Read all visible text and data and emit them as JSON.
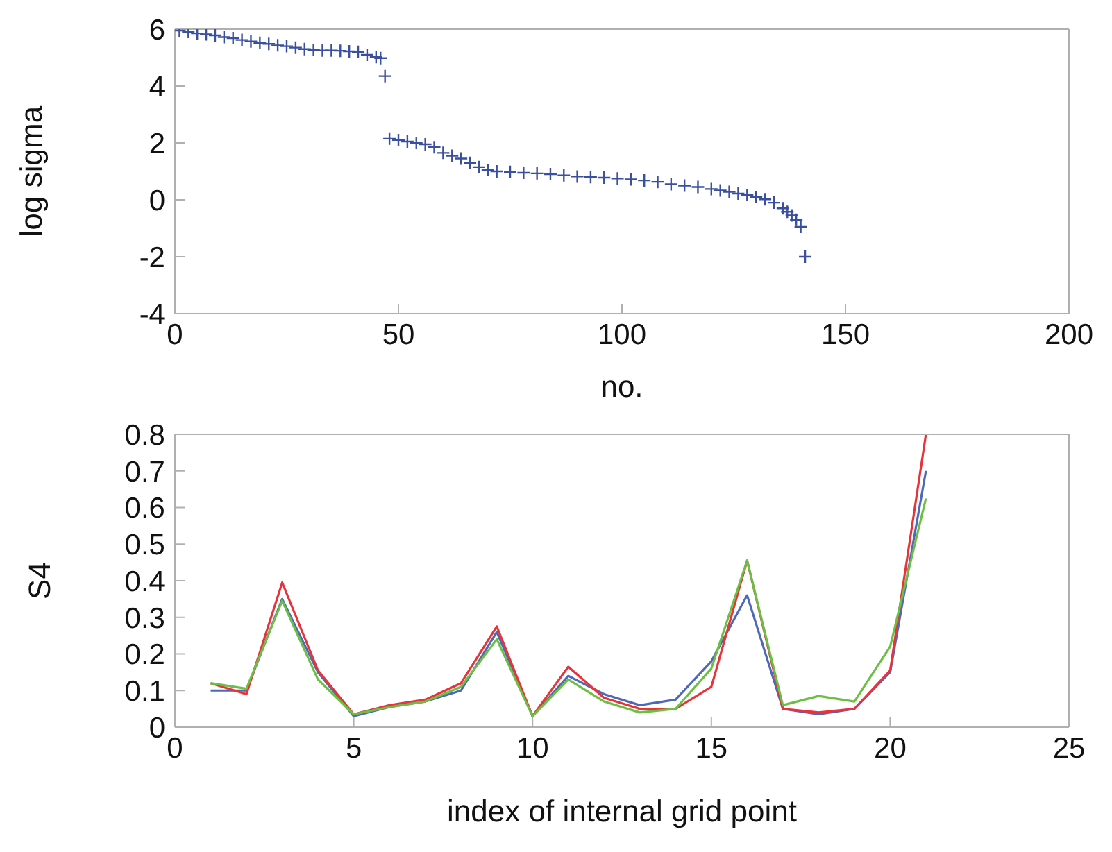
{
  "chart_data": [
    {
      "type": "scatter",
      "xlabel": "no.",
      "ylabel": "log sigma",
      "xlim": [
        0,
        200
      ],
      "xticks": [
        0,
        50,
        100,
        150,
        200
      ],
      "ylim": [
        -4,
        6
      ],
      "yticks": [
        -4,
        -2,
        0,
        2,
        4,
        6
      ],
      "marker": "cross",
      "grid": false,
      "series": [
        {
          "color": "#3b4fa0",
          "x": [
            1,
            3,
            5,
            7,
            9,
            11,
            13,
            15,
            17,
            19,
            21,
            23,
            25,
            27,
            29,
            31,
            33,
            35,
            37,
            39,
            41,
            43,
            45,
            46,
            47,
            48,
            50,
            52,
            54,
            56,
            58,
            60,
            62,
            64,
            66,
            68,
            70,
            72,
            75,
            78,
            81,
            84,
            87,
            90,
            93,
            96,
            99,
            102,
            105,
            108,
            111,
            114,
            117,
            120,
            122,
            124,
            126,
            128,
            130,
            132,
            134,
            136,
            137,
            138,
            139,
            140,
            141
          ],
          "values": [
            5.95,
            5.9,
            5.85,
            5.82,
            5.78,
            5.72,
            5.68,
            5.62,
            5.57,
            5.52,
            5.48,
            5.43,
            5.4,
            5.35,
            5.3,
            5.27,
            5.25,
            5.25,
            5.24,
            5.22,
            5.2,
            5.1,
            5.02,
            4.98,
            4.35,
            2.15,
            2.1,
            2.05,
            2.0,
            1.95,
            1.85,
            1.65,
            1.55,
            1.45,
            1.3,
            1.15,
            1.05,
            1.0,
            0.98,
            0.95,
            0.93,
            0.9,
            0.86,
            0.82,
            0.8,
            0.78,
            0.75,
            0.72,
            0.68,
            0.63,
            0.55,
            0.5,
            0.45,
            0.38,
            0.33,
            0.28,
            0.22,
            0.17,
            0.1,
            0.02,
            -0.1,
            -0.3,
            -0.42,
            -0.55,
            -0.7,
            -0.95,
            -2.0
          ]
        }
      ]
    },
    {
      "type": "line",
      "xlabel": "index of internal grid point",
      "ylabel": "S4",
      "x": [
        1,
        2,
        3,
        4,
        5,
        6,
        7,
        8,
        9,
        10,
        11,
        12,
        13,
        14,
        15,
        16,
        17,
        18,
        19,
        20,
        21
      ],
      "xlim": [
        0,
        25
      ],
      "xticks": [
        0,
        5,
        10,
        15,
        20,
        25
      ],
      "ylim": [
        0,
        0.8
      ],
      "yticks": [
        0,
        0.1,
        0.2,
        0.3,
        0.4,
        0.5,
        0.6,
        0.7,
        0.8
      ],
      "marker": "none",
      "line_style": "solid",
      "grid": false,
      "series": [
        {
          "color": "#5068b8",
          "values": [
            0.1,
            0.1,
            0.35,
            0.15,
            0.03,
            0.055,
            0.07,
            0.1,
            0.26,
            0.03,
            0.14,
            0.09,
            0.06,
            0.075,
            0.18,
            0.36,
            0.05,
            0.035,
            0.05,
            0.15,
            0.7
          ]
        },
        {
          "color": "#e8333a",
          "values": [
            0.12,
            0.09,
            0.395,
            0.155,
            0.035,
            0.06,
            0.075,
            0.12,
            0.275,
            0.03,
            0.165,
            0.08,
            0.05,
            0.05,
            0.11,
            0.455,
            0.05,
            0.04,
            0.05,
            0.155,
            0.8
          ]
        },
        {
          "color": "#6cbf45",
          "values": [
            0.12,
            0.105,
            0.345,
            0.13,
            0.035,
            0.055,
            0.07,
            0.11,
            0.24,
            0.03,
            0.13,
            0.07,
            0.04,
            0.05,
            0.16,
            0.455,
            0.06,
            0.085,
            0.07,
            0.22,
            0.625
          ]
        }
      ]
    }
  ]
}
